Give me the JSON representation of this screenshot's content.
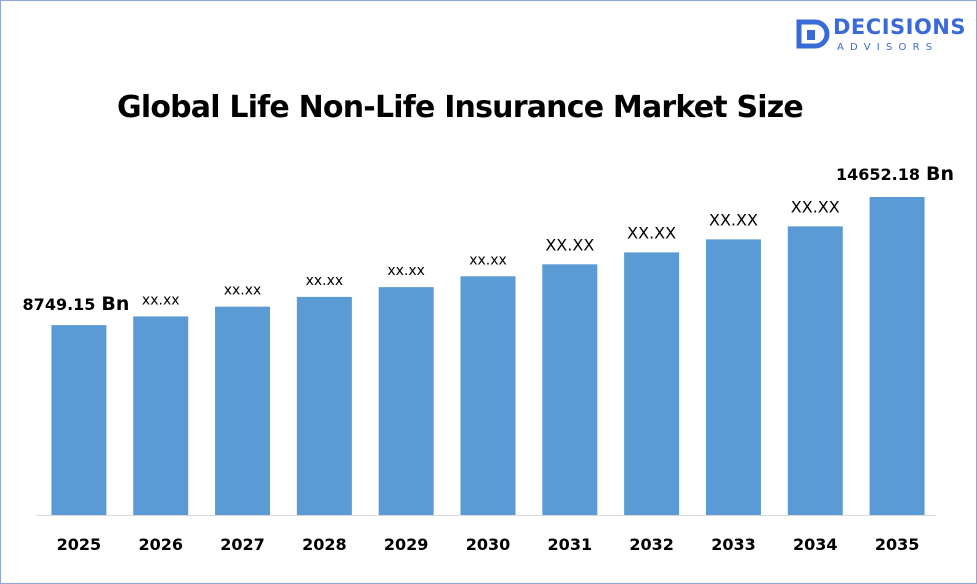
{
  "brand": {
    "name": "DECISIONS",
    "sub": "ADVISORS",
    "color": "#3a6ad8"
  },
  "chart_data": {
    "type": "bar",
    "title": "Global Life Non-Life Insurance Market Size",
    "categories": [
      "2025",
      "2026",
      "2027",
      "2028",
      "2029",
      "2030",
      "2031",
      "2032",
      "2033",
      "2034",
      "2035"
    ],
    "values": [
      8749.15,
      9150,
      9600,
      10050,
      10500,
      11000,
      11550,
      12100,
      12700,
      13300,
      14652.18
    ],
    "data_labels": [
      "8749.15",
      "xx.xx",
      "xx.xx",
      "xx.xx",
      "xx.xx",
      "xx.xx",
      "XX.XX",
      "XX.XX",
      "XX.XX",
      "XX.XX",
      "14652.18"
    ],
    "unit_suffix": "Bn",
    "xlabel": "",
    "ylabel": "",
    "ylim": [
      0,
      16000
    ],
    "grid": false,
    "bar_color": "#5b9bd5"
  }
}
